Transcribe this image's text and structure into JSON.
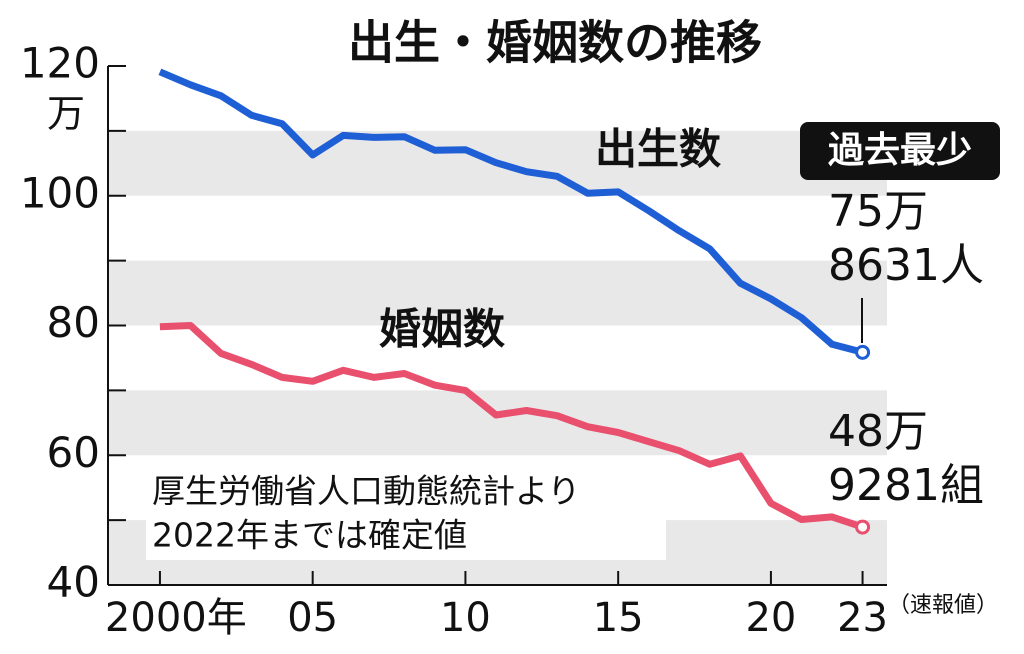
{
  "chart_data": {
    "type": "line",
    "title": "出生・婚姻数の推移",
    "x": [
      2000,
      2001,
      2002,
      2003,
      2004,
      2005,
      2006,
      2007,
      2008,
      2009,
      2010,
      2011,
      2012,
      2013,
      2014,
      2015,
      2016,
      2017,
      2018,
      2019,
      2020,
      2021,
      2022,
      2023
    ],
    "series": [
      {
        "name": "出生数",
        "color": "#1f5fd6",
        "values": [
          119.1,
          117.1,
          115.4,
          112.4,
          111.1,
          106.3,
          109.3,
          109.0,
          109.1,
          107.0,
          107.1,
          105.1,
          103.7,
          103.0,
          100.4,
          100.6,
          97.7,
          94.6,
          91.8,
          86.5,
          84.1,
          81.2,
          77.1,
          75.8631
        ]
      },
      {
        "name": "婚姻数",
        "color": "#e8506e",
        "values": [
          79.8,
          80.0,
          75.7,
          74.0,
          72.0,
          71.4,
          73.1,
          72.0,
          72.6,
          70.8,
          70.0,
          66.2,
          66.9,
          66.1,
          64.4,
          63.5,
          62.1,
          60.7,
          58.6,
          59.9,
          52.6,
          50.1,
          50.5,
          48.9281
        ]
      }
    ],
    "xlim": [
      1998.3,
      2023.8
    ],
    "xticks": [
      {
        "value": 2000,
        "label": "2000年"
      },
      {
        "value": 2005,
        "label": "05"
      },
      {
        "value": 2010,
        "label": "10"
      },
      {
        "value": 2015,
        "label": "15"
      },
      {
        "value": 2020,
        "label": "20"
      },
      {
        "value": 2023,
        "label": "23"
      }
    ],
    "x_note": "（速報値）",
    "ylim": [
      40,
      120
    ],
    "yticks": [
      40,
      60,
      80,
      100,
      120
    ],
    "y_unit": "万",
    "bands": true,
    "badge": "過去最少",
    "end_labels": [
      [
        "75万",
        "8631人"
      ],
      [
        "48万",
        "9281組"
      ]
    ],
    "source": [
      "厚生労働省人口動態統計より",
      "2022年までは確定値"
    ]
  }
}
